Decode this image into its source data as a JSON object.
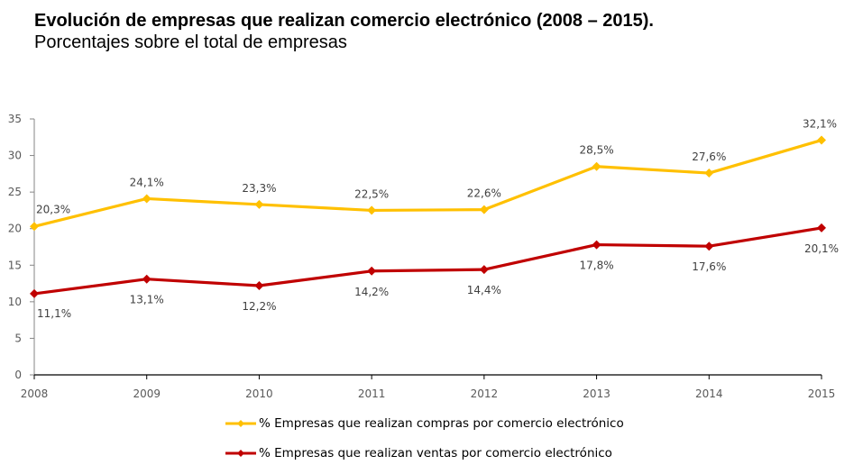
{
  "header": {
    "title": "Evolución de empresas que realizan comercio electrónico (2008 – 2015).",
    "subtitle": "Porcentajes sobre el total de empresas"
  },
  "chart_data": {
    "type": "line",
    "title": "Evolución de empresas que realizan comercio electrónico (2008 – 2015).",
    "subtitle": "Porcentajes sobre el total de empresas",
    "xlabel": "",
    "ylabel": "",
    "x": [
      "2008",
      "2009",
      "2010",
      "2011",
      "2012",
      "2013",
      "2014",
      "2015"
    ],
    "ylim": [
      0,
      35
    ],
    "yticks": [
      "0",
      "5",
      "10",
      "15",
      "20",
      "25",
      "30",
      "35"
    ],
    "ytick_values": [
      0,
      5,
      10,
      15,
      20,
      25,
      30,
      35
    ],
    "grid": false,
    "legend_position": "bottom",
    "series": [
      {
        "name": "% Empresas que realizan compras por comercio electrónico",
        "color": "#FFC000",
        "marker": "diamond",
        "values": [
          20.3,
          24.1,
          23.3,
          22.5,
          22.6,
          28.5,
          27.6,
          32.1
        ],
        "labels": [
          "20,3%",
          "24,1%",
          "23,3%",
          "22,5%",
          "22,6%",
          "28,5%",
          "27,6%",
          "32,1%"
        ],
        "label_position": "above"
      },
      {
        "name": "% Empresas que realizan ventas por comercio electrónico",
        "color": "#C00000",
        "marker": "diamond",
        "values": [
          11.1,
          13.1,
          12.2,
          14.2,
          14.4,
          17.8,
          17.6,
          20.1
        ],
        "labels": [
          "11,1%",
          "13,1%",
          "12,2%",
          "14,2%",
          "14,4%",
          "17,8%",
          "17,6%",
          "20,1%"
        ],
        "label_position": "below"
      }
    ]
  }
}
